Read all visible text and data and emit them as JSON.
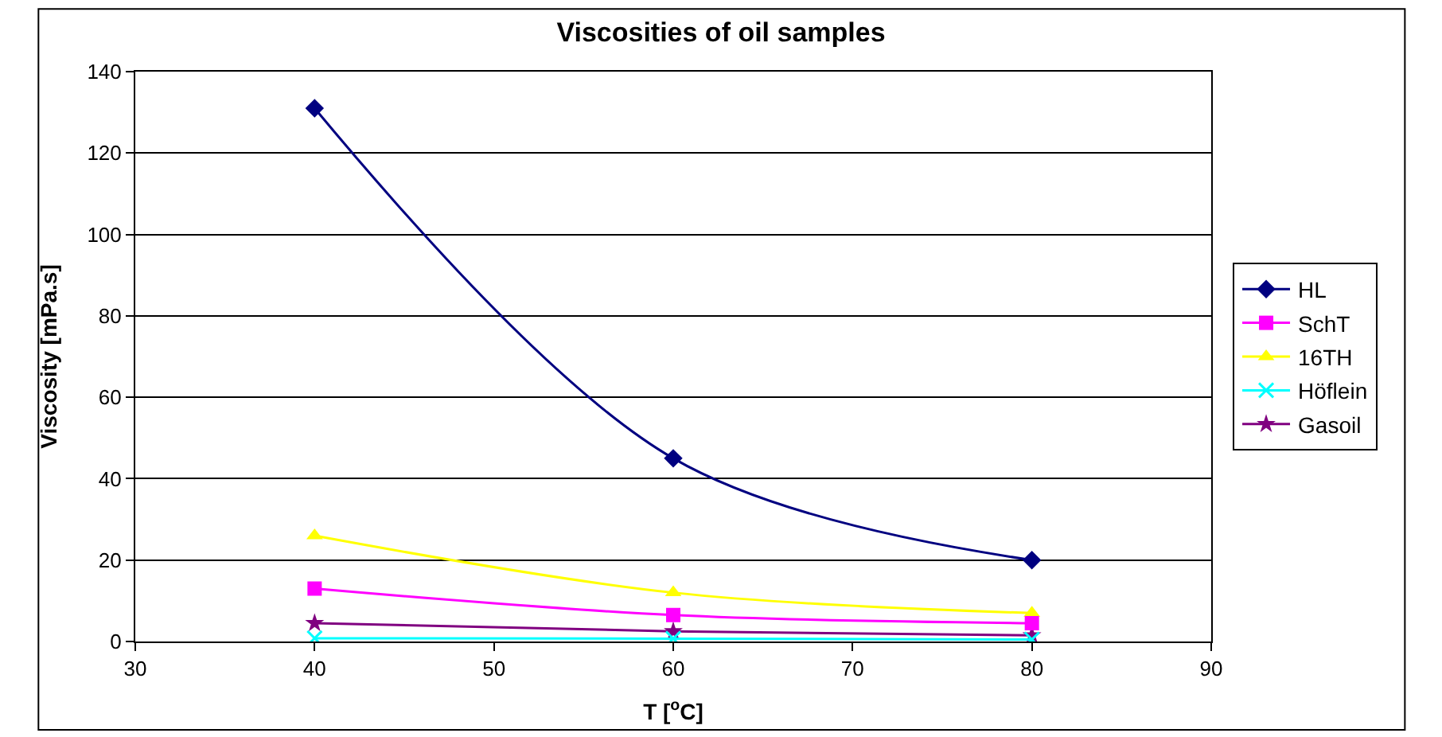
{
  "chart_data": {
    "type": "line",
    "title": "Viscosities of oil samples",
    "xlabel": "T [$^{o}$C]",
    "ylabel": "Viscosity [mPa.s]",
    "x": [
      40,
      60,
      80
    ],
    "xlim": [
      30,
      90
    ],
    "xticks": [
      30,
      40,
      50,
      60,
      70,
      80,
      90
    ],
    "ylim": [
      0,
      140
    ],
    "yticks": [
      0,
      20,
      40,
      60,
      80,
      100,
      120,
      140
    ],
    "grid": "y",
    "legend": "right",
    "series": [
      {
        "name": "HL",
        "color": "#000080",
        "marker": "diamond",
        "values": [
          131,
          45,
          20
        ]
      },
      {
        "name": "SchT",
        "color": "#ff00ff",
        "marker": "square",
        "values": [
          13,
          6.5,
          4.5
        ]
      },
      {
        "name": "16TH",
        "color": "#ffff00",
        "marker": "triangle",
        "values": [
          26,
          12,
          7
        ]
      },
      {
        "name": "Höflein",
        "color": "#00ffff",
        "marker": "cross",
        "values": [
          0.8,
          0.7,
          0.5
        ]
      },
      {
        "name": "Gasoil",
        "color": "#800080",
        "marker": "star",
        "values": [
          4.5,
          2.5,
          1.5
        ]
      }
    ]
  }
}
